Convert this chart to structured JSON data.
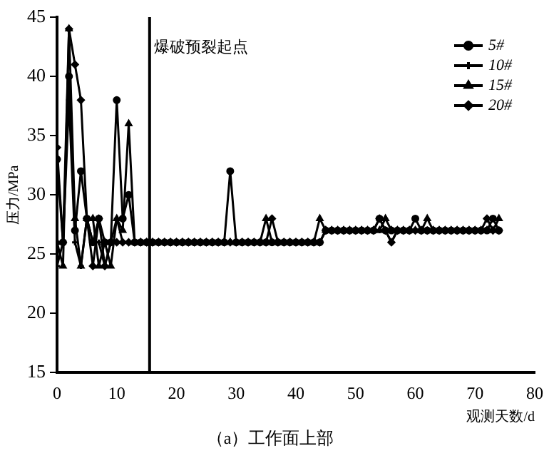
{
  "chart_data": {
    "type": "line",
    "title": "（a）工作面上部",
    "xlabel": "观测天数/d",
    "ylabel": "压力/MPa",
    "x": [
      0,
      1,
      2,
      3,
      4,
      5,
      6,
      7,
      8,
      9,
      10,
      11,
      12,
      13,
      14,
      15,
      16,
      17,
      18,
      19,
      20,
      21,
      22,
      23,
      24,
      25,
      26,
      27,
      28,
      29,
      30,
      31,
      32,
      33,
      34,
      35,
      36,
      37,
      38,
      39,
      40,
      41,
      42,
      43,
      44,
      45,
      46,
      47,
      48,
      49,
      50,
      51,
      52,
      53,
      54,
      55,
      56,
      57,
      58,
      59,
      60,
      61,
      62,
      63,
      64,
      65,
      66,
      67,
      68,
      69,
      70,
      71,
      72,
      73,
      74
    ],
    "series": [
      {
        "name": "5#",
        "color": "#000000",
        "marker": "circle",
        "values": [
          33,
          26,
          40,
          27,
          32,
          28,
          26,
          28,
          26,
          26,
          38,
          28,
          30,
          26,
          26,
          26,
          26,
          26,
          26,
          26,
          26,
          26,
          26,
          26,
          26,
          26,
          26,
          26,
          26,
          32,
          26,
          26,
          26,
          26,
          26,
          26,
          26,
          26,
          26,
          26,
          26,
          26,
          26,
          26,
          26,
          27,
          27,
          27,
          27,
          27,
          27,
          27,
          27,
          27,
          28,
          27,
          27,
          27,
          27,
          27,
          28,
          27,
          27,
          27,
          27,
          27,
          27,
          27,
          27,
          27,
          27,
          27,
          27,
          28,
          27
        ]
      },
      {
        "name": "10#",
        "color": "#000000",
        "marker": "cross",
        "values": [
          24,
          26,
          38,
          26,
          24,
          28,
          26,
          26,
          24,
          26,
          28,
          26,
          26,
          26,
          26,
          26,
          26,
          26,
          26,
          26,
          26,
          26,
          26,
          26,
          26,
          26,
          26,
          26,
          26,
          26,
          26,
          26,
          26,
          26,
          26,
          26,
          26,
          26,
          26,
          26,
          26,
          26,
          26,
          26,
          26,
          27,
          27,
          27,
          27,
          27,
          27,
          27,
          27,
          27,
          27,
          27,
          26,
          27,
          27,
          27,
          27,
          27,
          27,
          27,
          27,
          27,
          27,
          27,
          27,
          27,
          27,
          27,
          27,
          27,
          27
        ]
      },
      {
        "name": "15#",
        "color": "#000000",
        "marker": "triangle",
        "values": [
          26,
          24,
          44,
          28,
          24,
          28,
          28,
          24,
          26,
          24,
          28,
          27,
          36,
          26,
          26,
          26,
          26,
          26,
          26,
          26,
          26,
          26,
          26,
          26,
          26,
          26,
          26,
          26,
          26,
          26,
          26,
          26,
          26,
          26,
          26,
          28,
          26,
          26,
          26,
          26,
          26,
          26,
          26,
          26,
          28,
          27,
          27,
          27,
          27,
          27,
          27,
          27,
          27,
          27,
          27,
          28,
          27,
          27,
          27,
          27,
          27,
          27,
          28,
          27,
          27,
          27,
          27,
          27,
          27,
          27,
          27,
          27,
          27,
          27,
          28
        ]
      },
      {
        "name": "20#",
        "color": "#000000",
        "marker": "diamond",
        "values": [
          34,
          26,
          44,
          41,
          38,
          28,
          24,
          28,
          24,
          26,
          26,
          26,
          26,
          26,
          26,
          26,
          26,
          26,
          26,
          26,
          26,
          26,
          26,
          26,
          26,
          26,
          26,
          26,
          26,
          26,
          26,
          26,
          26,
          26,
          26,
          26,
          28,
          26,
          26,
          26,
          26,
          26,
          26,
          26,
          26,
          27,
          27,
          27,
          27,
          27,
          27,
          27,
          27,
          27,
          28,
          27,
          26,
          27,
          27,
          27,
          27,
          27,
          27,
          27,
          27,
          27,
          27,
          27,
          27,
          27,
          27,
          27,
          28,
          27,
          27
        ]
      }
    ],
    "xlim": [
      0,
      80
    ],
    "xticks": [
      0,
      10,
      20,
      30,
      40,
      50,
      60,
      70,
      80
    ],
    "ylim": [
      15,
      45
    ],
    "yticks": [
      15,
      20,
      25,
      30,
      35,
      40,
      45
    ],
    "ref_lines": [
      {
        "axis": "x",
        "value": 15.5,
        "label": "爆破预裂起点",
        "color": "#000000"
      }
    ],
    "legend": "top right",
    "grid": false
  }
}
